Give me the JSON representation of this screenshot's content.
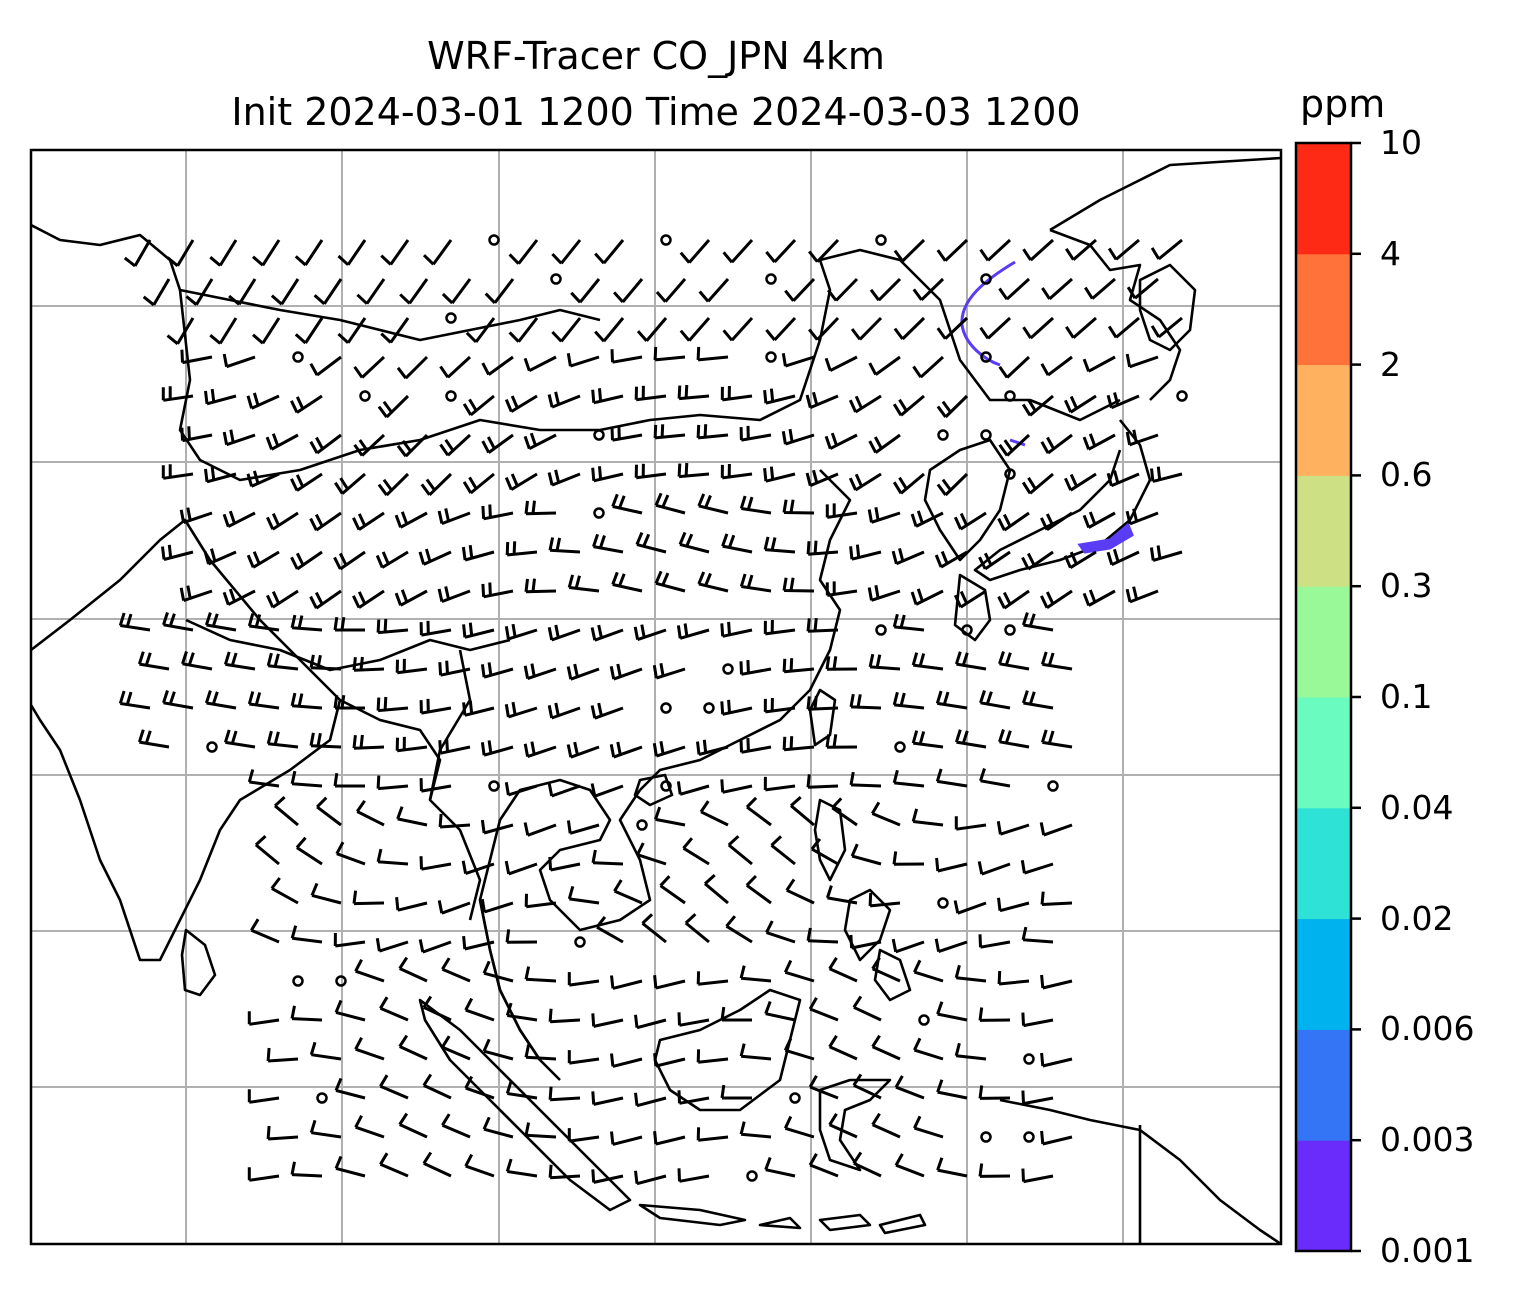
{
  "title": {
    "line1": "WRF-Tracer CO_JPN 4km",
    "line2": "Init 2024-03-01 1200 Time 2024-03-03 1200"
  },
  "colorbar": {
    "unit": "ppm",
    "levels": [
      "0.001",
      "0.003",
      "0.006",
      "0.02",
      "0.04",
      "0.1",
      "0.3",
      "0.6",
      "2",
      "4",
      "10"
    ],
    "colors": [
      "#6a2cfb",
      "#3375f4",
      "#00b2ed",
      "#2ee2d6",
      "#69fbc0",
      "#99f998",
      "#cde184",
      "#feb260",
      "#ff723a",
      "#ff2a16"
    ]
  },
  "map": {
    "graticule_color": "#b0b0b0",
    "coastline_color": "#000000",
    "tracer_color": "#5a3cf5"
  }
}
